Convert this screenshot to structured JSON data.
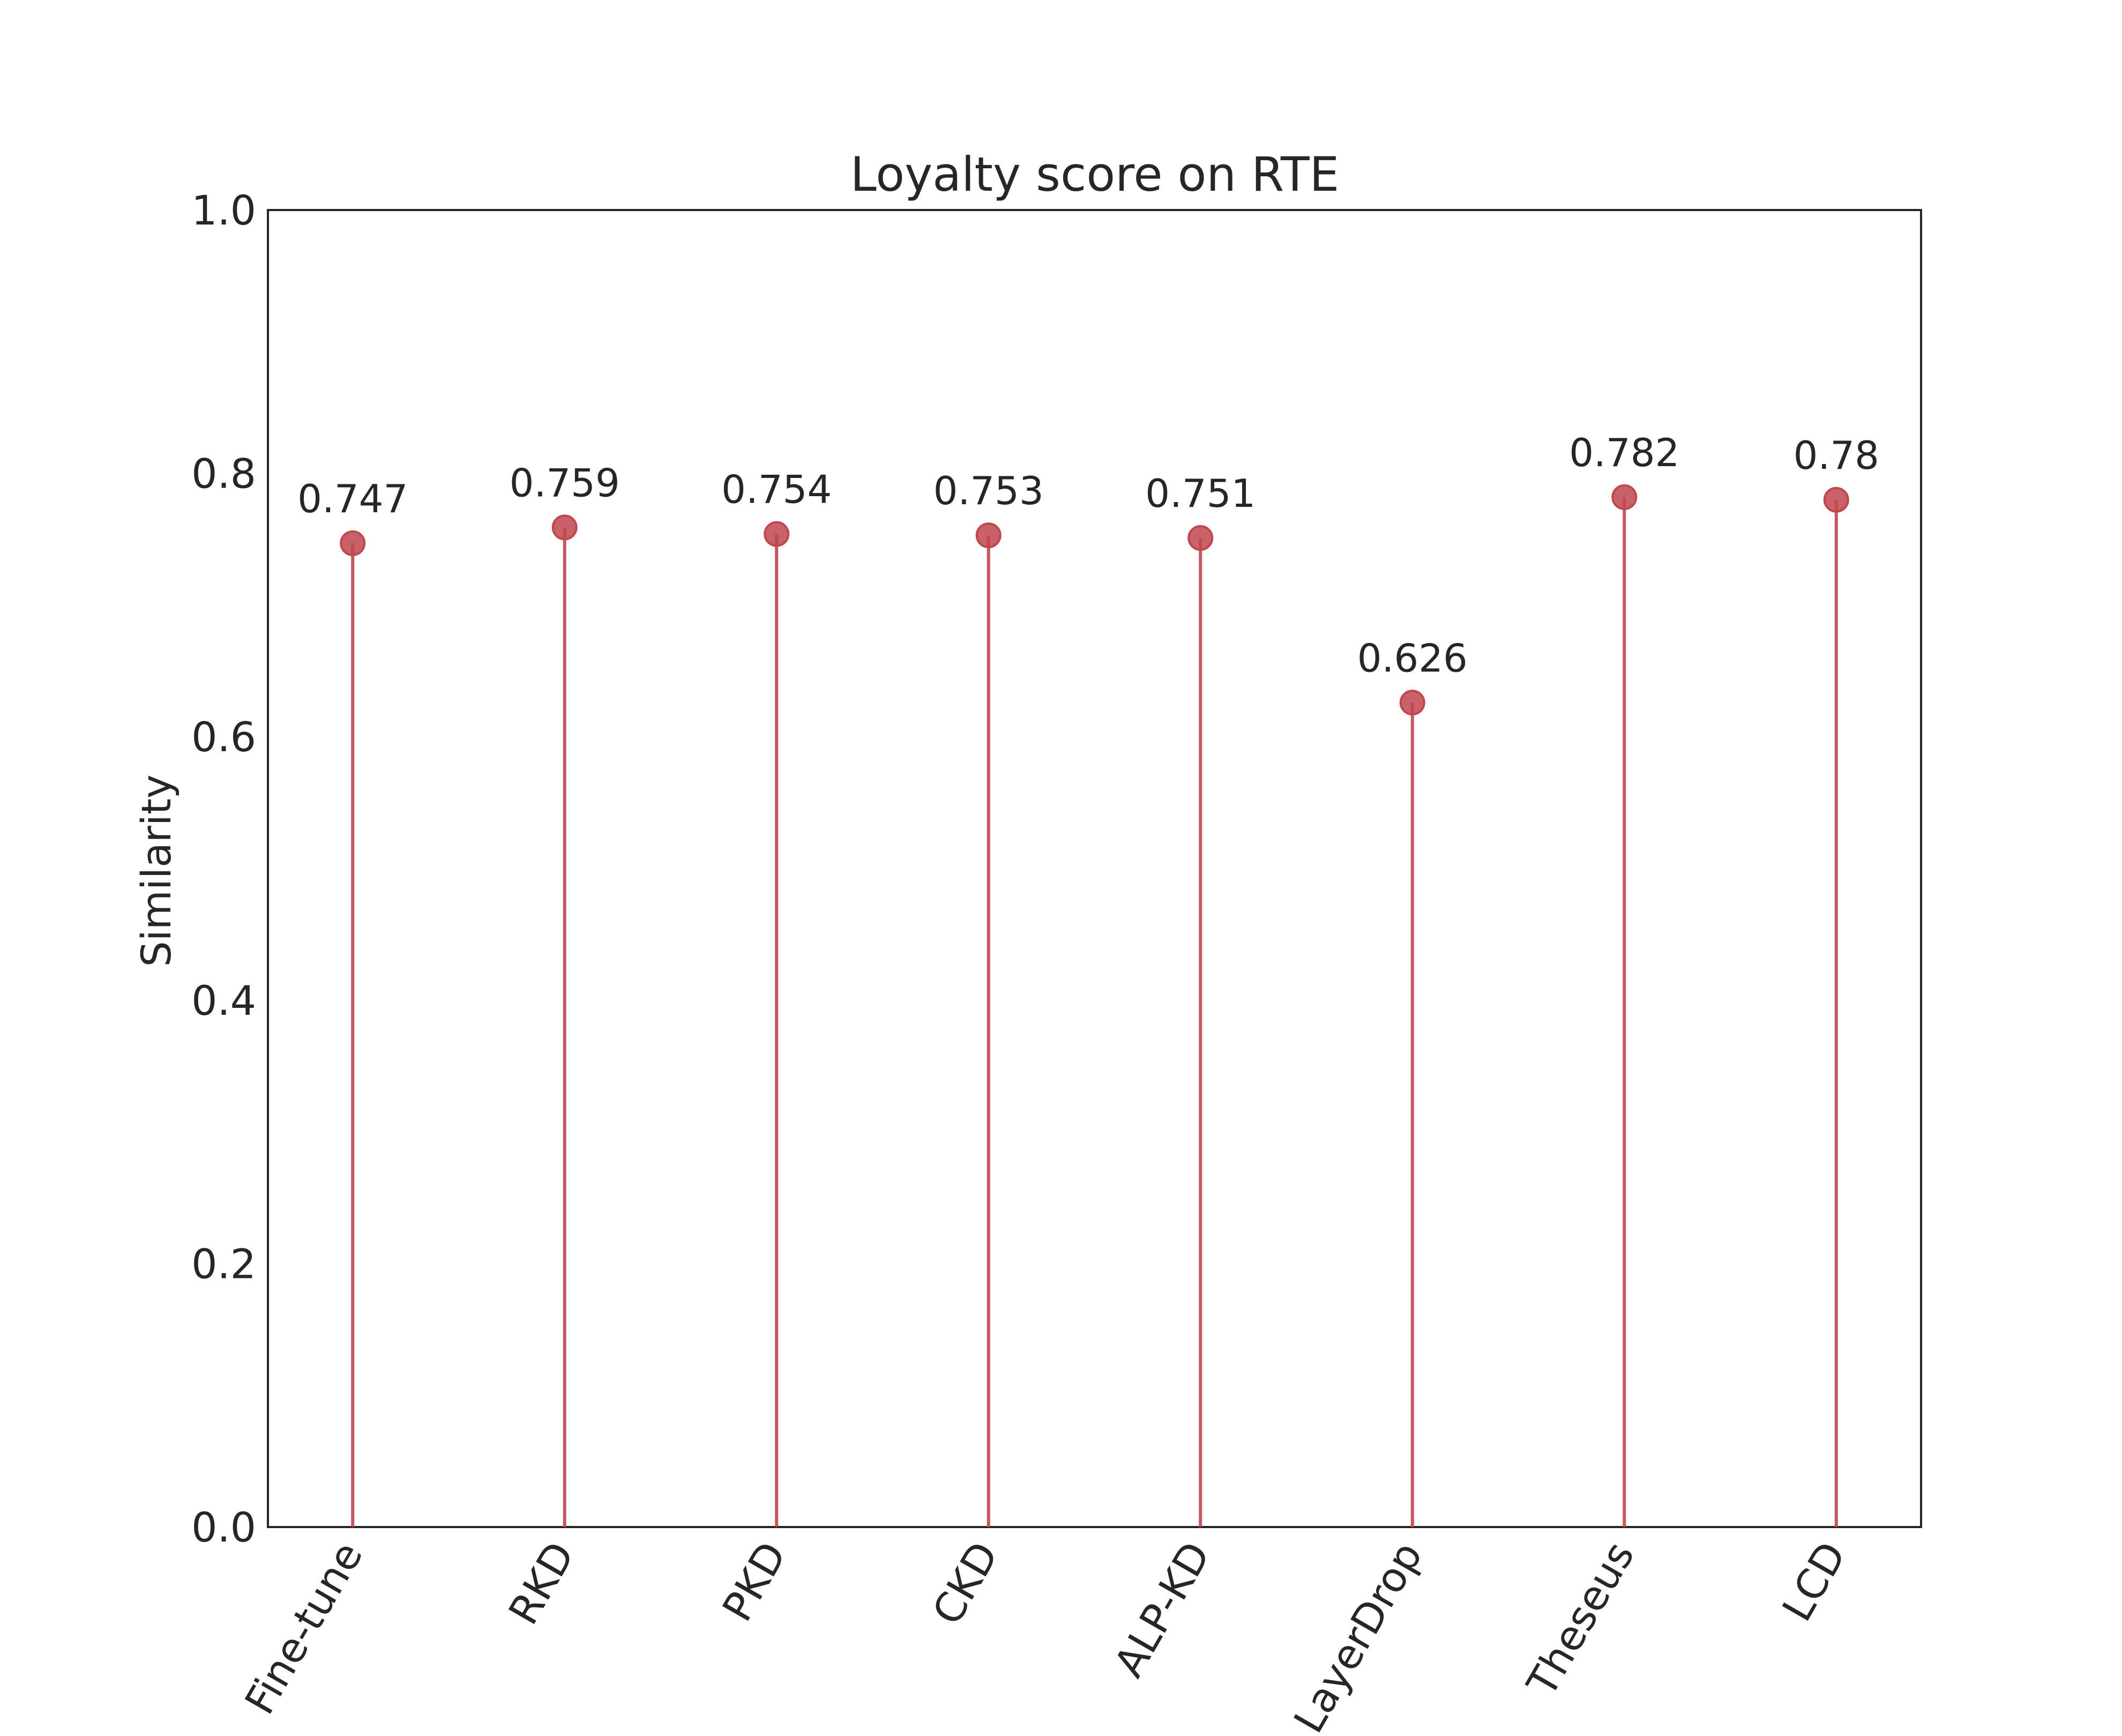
{
  "chart_data": {
    "type": "lollipop",
    "title": "Loyalty score on RTE",
    "xlabel": "",
    "ylabel": "Similarity",
    "categories": [
      "Fine-tune",
      "RKD",
      "PKD",
      "CKD",
      "ALP-KD",
      "LayerDrop",
      "Theseus",
      "LCD"
    ],
    "values": [
      0.747,
      0.759,
      0.754,
      0.753,
      0.751,
      0.626,
      0.782,
      0.78
    ],
    "data_labels": [
      "0.747",
      "0.759",
      "0.754",
      "0.753",
      "0.751",
      "0.626",
      "0.782",
      "0.78"
    ],
    "ylim": [
      0.0,
      1.0
    ],
    "yticks": [
      "0.0",
      "0.2",
      "0.4",
      "0.6",
      "0.8",
      "1.0"
    ],
    "grid": false,
    "x_tick_rotation_deg": 60,
    "color": "#c0474d"
  }
}
